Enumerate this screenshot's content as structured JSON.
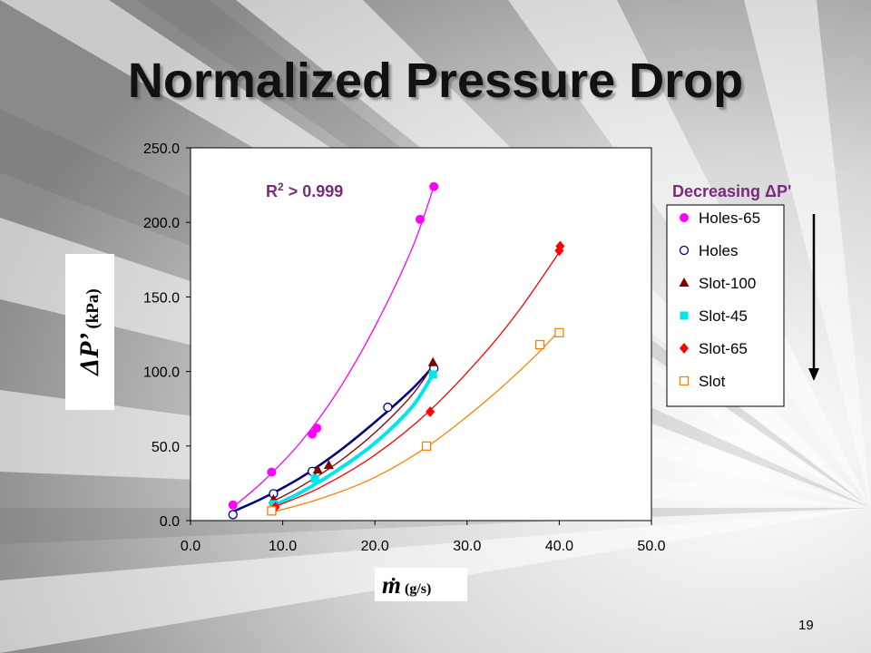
{
  "slide": {
    "title": "Normalized Pressure Drop",
    "page_number": "19"
  },
  "annotations": {
    "r2": "R",
    "r2_sup": "2",
    "r2_value": " > 0.999",
    "decreasing": "Decreasing ΔP'"
  },
  "axis_labels": {
    "y_main": "ΔP’",
    "y_unit": "(kPa)",
    "x_main": "m",
    "x_dot": "·",
    "x_unit": "(g/s)"
  },
  "chart_data": {
    "type": "scatter",
    "xlim": [
      0,
      50
    ],
    "ylim": [
      0,
      250
    ],
    "x_ticks": [
      "0.0",
      "10.0",
      "20.0",
      "30.0",
      "40.0",
      "50.0"
    ],
    "y_ticks": [
      "0.0",
      "50.0",
      "100.0",
      "150.0",
      "200.0",
      "250.0"
    ],
    "grid": false,
    "legend_position": "right",
    "series": [
      {
        "name": "Holes-65",
        "marker": "circle-filled",
        "color": "#ff00ff",
        "points": [
          [
            4.6,
            10.5
          ],
          [
            8.8,
            32.5
          ],
          [
            13.2,
            58.0
          ],
          [
            13.7,
            62.0
          ],
          [
            24.9,
            202.0
          ],
          [
            26.4,
            224.0
          ]
        ],
        "fit": [
          [
            4.6,
            9.0
          ],
          [
            8.0,
            27.0
          ],
          [
            12.0,
            53.0
          ],
          [
            16.0,
            87.0
          ],
          [
            20.0,
            130.0
          ],
          [
            24.0,
            182.0
          ],
          [
            26.4,
            224.0
          ]
        ]
      },
      {
        "name": "Holes",
        "marker": "circle-open",
        "color": "#000080",
        "points": [
          [
            4.6,
            4.0
          ],
          [
            9.0,
            18.0
          ],
          [
            13.2,
            33.0
          ],
          [
            21.4,
            76.0
          ],
          [
            26.4,
            102.0
          ]
        ],
        "fit": [
          [
            4.6,
            6.0
          ],
          [
            8.0,
            15.5
          ],
          [
            12.0,
            29.0
          ],
          [
            16.0,
            46.0
          ],
          [
            20.0,
            66.0
          ],
          [
            24.0,
            88.0
          ],
          [
            26.4,
            104.0
          ]
        ]
      },
      {
        "name": "Slot-100",
        "marker": "triangle-filled",
        "color": "#800000",
        "points": [
          [
            9.0,
            14.0
          ],
          [
            13.8,
            34.0
          ],
          [
            15.0,
            37.0
          ],
          [
            26.3,
            106.0
          ]
        ],
        "fit": [
          [
            9.0,
            13.0
          ],
          [
            12.0,
            23.0
          ],
          [
            16.0,
            39.0
          ],
          [
            20.0,
            59.0
          ],
          [
            24.0,
            84.0
          ],
          [
            26.3,
            104.0
          ]
        ]
      },
      {
        "name": "Slot-45",
        "marker": "square-filled",
        "color": "#00e5ee",
        "points": [
          [
            9.0,
            11.0
          ],
          [
            13.5,
            28.0
          ],
          [
            26.3,
            98.0
          ]
        ],
        "fit": [
          [
            9.0,
            10.0
          ],
          [
            12.0,
            19.0
          ],
          [
            16.0,
            34.0
          ],
          [
            20.0,
            52.0
          ],
          [
            24.0,
            76.0
          ],
          [
            26.3,
            98.0
          ]
        ]
      },
      {
        "name": "Slot-65",
        "marker": "diamond-filled",
        "color": "#ff0000",
        "points": [
          [
            9.2,
            9.0
          ],
          [
            26.0,
            73.0
          ],
          [
            40.0,
            181.0
          ],
          [
            40.1,
            184.0
          ]
        ],
        "fit": [
          [
            9.0,
            9.0
          ],
          [
            14.0,
            22.0
          ],
          [
            20.0,
            44.0
          ],
          [
            26.0,
            74.0
          ],
          [
            32.0,
            113.0
          ],
          [
            36.0,
            144.0
          ],
          [
            40.0,
            180.0
          ]
        ]
      },
      {
        "name": "Slot",
        "marker": "square-open",
        "color": "#ff8000",
        "points": [
          [
            8.8,
            6.5
          ],
          [
            25.6,
            50.0
          ],
          [
            37.9,
            118.0
          ],
          [
            40.0,
            126.0
          ]
        ],
        "fit": [
          [
            8.8,
            5.5
          ],
          [
            14.0,
            14.5
          ],
          [
            20.0,
            29.0
          ],
          [
            26.0,
            51.0
          ],
          [
            32.0,
            80.0
          ],
          [
            37.0,
            108.0
          ],
          [
            40.1,
            128.0
          ]
        ]
      }
    ]
  }
}
